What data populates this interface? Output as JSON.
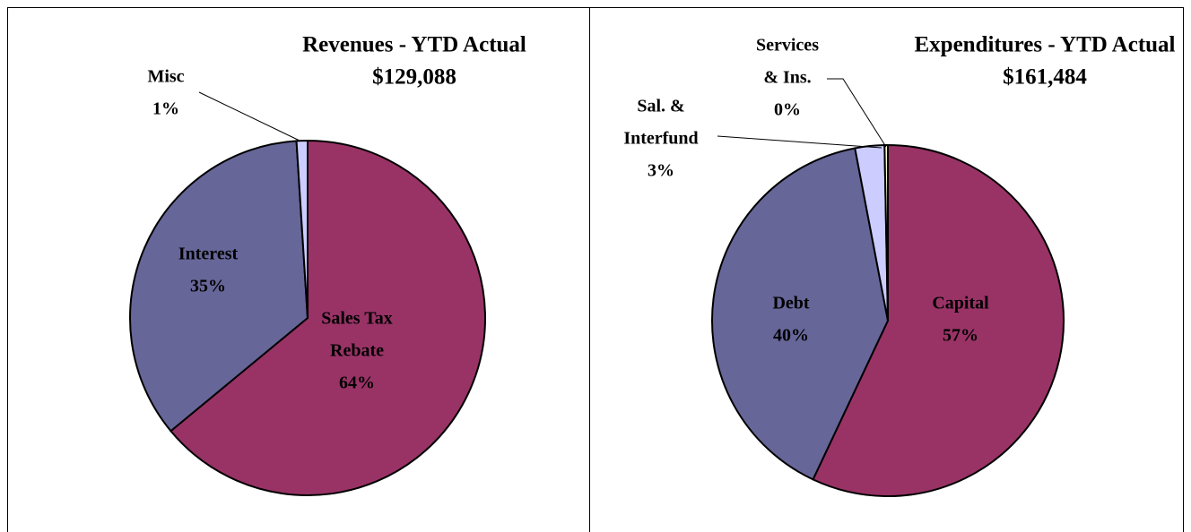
{
  "chart_data": [
    {
      "type": "pie",
      "title": "Revenues - YTD Actual",
      "subtitle": "$129,088",
      "categories": [
        [
          "Sales Tax",
          "Rebate"
        ],
        [
          "Interest"
        ],
        [
          "Misc"
        ]
      ],
      "values": [
        64,
        35,
        1
      ],
      "value_labels": [
        "64%",
        "35%",
        "1%"
      ],
      "colors": [
        "#993366",
        "#666699",
        "#ccccff"
      ]
    },
    {
      "type": "pie",
      "title": "Expenditures - YTD Actual",
      "subtitle": "$161,484",
      "categories": [
        [
          "Capital"
        ],
        [
          "Debt"
        ],
        [
          "Sal. &",
          "Interfund"
        ],
        [
          "Services",
          "& Ins."
        ]
      ],
      "values": [
        57,
        40,
        2.7,
        0.3
      ],
      "value_labels": [
        "57%",
        "40%",
        "3%",
        "0%"
      ],
      "colors": [
        "#993366",
        "#666699",
        "#ccccff",
        "#ffffcc"
      ]
    }
  ]
}
